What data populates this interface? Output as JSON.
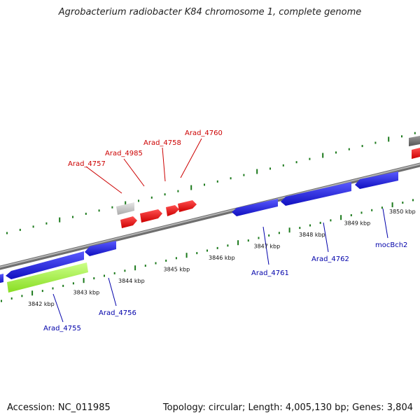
{
  "title": "Agrobacterium radiobacter K84 chromosome 1, complete genome",
  "footer": {
    "accession": "Accession: NC_011985",
    "summary": "Topology: circular; Length: 4,005,130 bp; Genes: 3,804"
  },
  "colors": {
    "backbone": "#8a8a8a",
    "forward_gene": "#ee0000",
    "reverse_gene": "#1a1ad6",
    "rna_gene": "#aaff44",
    "pseudo_gene": "#c8c8c8",
    "other_gene": "#777777",
    "tick": "#1c7a1c",
    "forward_label": "#cc0000",
    "reverse_label": "#0000aa"
  },
  "scale": {
    "unit": "kbp",
    "ticks": [
      {
        "value": 3842,
        "label": "3842 kbp"
      },
      {
        "value": 3843,
        "label": "3843 kbp"
      },
      {
        "value": 3844,
        "label": "3844 kbp"
      },
      {
        "value": 3845,
        "label": "3845 kbp"
      },
      {
        "value": 3846,
        "label": "3846 kbp"
      },
      {
        "value": 3847,
        "label": "3847 kbp"
      },
      {
        "value": 3848,
        "label": "3848 kbp"
      },
      {
        "value": 3849,
        "label": "3849 kbp"
      },
      {
        "value": 3850,
        "label": "3850 kbp"
      }
    ]
  },
  "genes": {
    "forward": [
      {
        "name": "Arad_4757",
        "type": "pseudo"
      },
      {
        "name": "Arad_4985",
        "type": "cds"
      },
      {
        "name": "Arad_4758",
        "type": "cds"
      },
      {
        "name": "Arad_4760",
        "type": "cds"
      }
    ],
    "reverse": [
      {
        "name": "Arad_4755",
        "type": "rna"
      },
      {
        "name": "Arad_4756",
        "type": "cds"
      },
      {
        "name": "Arad_4761",
        "type": "cds"
      },
      {
        "name": "Arad_4762",
        "type": "cds"
      },
      {
        "name": "mocBch2",
        "type": "cds"
      }
    ]
  }
}
